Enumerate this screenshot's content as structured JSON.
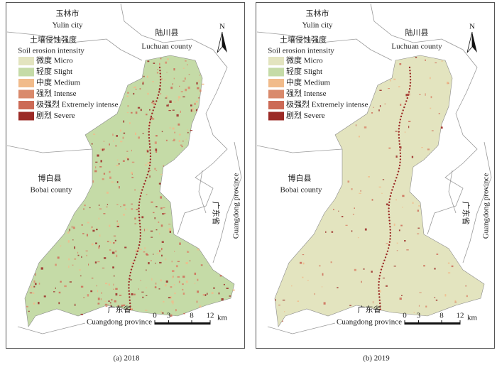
{
  "legend": {
    "title_cn": "土壤侵蚀强度",
    "title_en": "Soil erosion intensity",
    "items": [
      {
        "label": "微度 Micro",
        "color": "#e3e4bf"
      },
      {
        "label": "轻度 Slight",
        "color": "#c5dba7"
      },
      {
        "label": "中度 Medium",
        "color": "#f1bb8b"
      },
      {
        "label": "强烈 Intense",
        "color": "#d98a6c"
      },
      {
        "label": "极强烈 Extremely intense",
        "color": "#cc6a56"
      },
      {
        "label": "剧烈 Severe",
        "color": "#9b2a26"
      }
    ]
  },
  "places": {
    "yulin_cn": "玉林市",
    "yulin_en": "Yulin city",
    "luchuan_cn": "陆川县",
    "luchuan_en": "Luchuan county",
    "bobai_cn": "博白县",
    "bobai_en": "Bobai county",
    "gd_east_cn": "广东省",
    "gd_east_en": "Guangdong province",
    "gd_south_cn": "广东省",
    "gd_south_en": "Cuangdong province"
  },
  "north": "N",
  "scale_bar": {
    "ticks": [
      0,
      3,
      8,
      12
    ],
    "unit": "km"
  },
  "panels": [
    {
      "caption": "(a) 2018"
    },
    {
      "caption": "(b) 2019"
    }
  ]
}
